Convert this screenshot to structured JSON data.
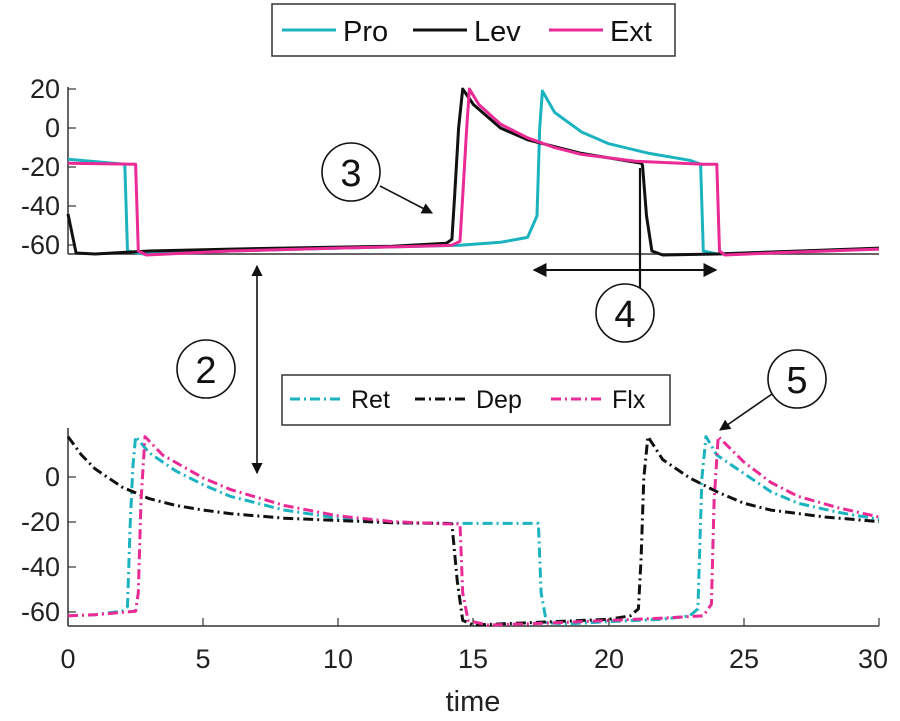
{
  "chart_data": [
    {
      "type": "line",
      "panel": "top",
      "xlim": [
        0,
        30
      ],
      "ylim": [
        -64,
        20
      ],
      "yticks": [
        "20",
        "0",
        "-20",
        "-40",
        "-60"
      ],
      "grid": false,
      "legend_position": "top",
      "series": [
        {
          "name": "Pro",
          "color": "#1bb3c0",
          "dash": "solid",
          "points": [
            [
              0,
              -16
            ],
            [
              2.1,
              -18.5
            ],
            [
              2.2,
              -63
            ],
            [
              2.8,
              -64.5
            ],
            [
              6,
              -63
            ],
            [
              10,
              -61.5
            ],
            [
              13,
              -60.5
            ],
            [
              14.5,
              -60
            ],
            [
              16,
              -58.5
            ],
            [
              17,
              -56
            ],
            [
              17.35,
              -45
            ],
            [
              17.45,
              0
            ],
            [
              17.55,
              19
            ],
            [
              18,
              8
            ],
            [
              19,
              -2
            ],
            [
              20,
              -8
            ],
            [
              21.5,
              -13
            ],
            [
              23,
              -16.5
            ],
            [
              23.4,
              -18.5
            ],
            [
              23.5,
              -63
            ],
            [
              24,
              -64.5
            ],
            [
              26,
              -63.5
            ],
            [
              30,
              -62
            ]
          ]
        },
        {
          "name": "Lev",
          "color": "#111111",
          "dash": "solid",
          "points": [
            [
              0,
              -44
            ],
            [
              0.3,
              -64
            ],
            [
              1,
              -64.5
            ],
            [
              3,
              -63
            ],
            [
              6,
              -62
            ],
            [
              10,
              -61
            ],
            [
              12,
              -60.5
            ],
            [
              14,
              -59
            ],
            [
              14.2,
              -57
            ],
            [
              14.3,
              -35
            ],
            [
              14.45,
              0
            ],
            [
              14.6,
              20
            ],
            [
              15,
              12
            ],
            [
              16,
              0
            ],
            [
              17,
              -6
            ],
            [
              19,
              -13
            ],
            [
              21.2,
              -18
            ],
            [
              21.25,
              -19
            ],
            [
              21.4,
              -45
            ],
            [
              21.6,
              -63
            ],
            [
              22,
              -65
            ],
            [
              24,
              -64.5
            ],
            [
              30,
              -61.5
            ]
          ]
        },
        {
          "name": "Ext",
          "color": "#ea2a95",
          "dash": "solid",
          "points": [
            [
              0,
              -18
            ],
            [
              2.5,
              -18.5
            ],
            [
              2.6,
              -63
            ],
            [
              2.9,
              -65
            ],
            [
              6,
              -63
            ],
            [
              10,
              -61.5
            ],
            [
              13,
              -60.5
            ],
            [
              14.2,
              -60
            ],
            [
              14.5,
              -58
            ],
            [
              14.6,
              -35
            ],
            [
              14.75,
              0
            ],
            [
              14.85,
              20
            ],
            [
              15.2,
              12
            ],
            [
              16,
              2
            ],
            [
              17,
              -5
            ],
            [
              18,
              -10
            ],
            [
              19,
              -13.5
            ],
            [
              21,
              -17
            ],
            [
              23.5,
              -18.5
            ],
            [
              24,
              -18.5
            ],
            [
              24.1,
              -63
            ],
            [
              24.3,
              -65
            ],
            [
              26,
              -64
            ],
            [
              30,
              -62
            ]
          ]
        }
      ]
    },
    {
      "type": "line",
      "panel": "bottom",
      "xlim": [
        0,
        30
      ],
      "ylim": [
        -64,
        20
      ],
      "xticks": [
        "0",
        "5",
        "10",
        "15",
        "20",
        "25",
        "30"
      ],
      "yticks": [
        "0",
        "-20",
        "-40",
        "-60"
      ],
      "xlabel": "time",
      "grid": false,
      "legend_position": "top",
      "series": [
        {
          "name": "Ret",
          "color": "#1bb3c0",
          "dash": "dashdot",
          "points": [
            [
              0,
              -60
            ],
            [
              1,
              -59.5
            ],
            [
              2,
              -58
            ],
            [
              2.2,
              -56
            ],
            [
              2.3,
              -20
            ],
            [
              2.4,
              5
            ],
            [
              2.5,
              18
            ],
            [
              3,
              11
            ],
            [
              4,
              3
            ],
            [
              5,
              -3
            ],
            [
              6,
              -8
            ],
            [
              8,
              -14
            ],
            [
              10,
              -17.5
            ],
            [
              12,
              -19.5
            ],
            [
              14,
              -19.8
            ],
            [
              17.4,
              -19.8
            ],
            [
              17.5,
              -50
            ],
            [
              17.7,
              -63
            ],
            [
              18.5,
              -63.5
            ],
            [
              20,
              -62.5
            ],
            [
              22,
              -61.5
            ],
            [
              23,
              -60
            ],
            [
              23.3,
              -57
            ],
            [
              23.45,
              0
            ],
            [
              23.6,
              18
            ],
            [
              24,
              10
            ],
            [
              25,
              2
            ],
            [
              26,
              -6
            ],
            [
              27,
              -11
            ],
            [
              28.5,
              -15
            ],
            [
              30,
              -18
            ]
          ]
        },
        {
          "name": "Dep",
          "color": "#111111",
          "dash": "dashdot",
          "points": [
            [
              0,
              18
            ],
            [
              0.5,
              10
            ],
            [
              1,
              4
            ],
            [
              1.5,
              0
            ],
            [
              2,
              -4
            ],
            [
              3,
              -9
            ],
            [
              4,
              -12
            ],
            [
              5,
              -14
            ],
            [
              6,
              -15.5
            ],
            [
              8,
              -17.5
            ],
            [
              10,
              -18.5
            ],
            [
              12,
              -19.5
            ],
            [
              14,
              -19.8
            ],
            [
              14.2,
              -20
            ],
            [
              14.4,
              -45
            ],
            [
              14.6,
              -62
            ],
            [
              15,
              -64
            ],
            [
              16,
              -63.5
            ],
            [
              18,
              -62.5
            ],
            [
              20,
              -61.5
            ],
            [
              20.8,
              -60
            ],
            [
              21.1,
              -57
            ],
            [
              21.2,
              -35
            ],
            [
              21.3,
              0
            ],
            [
              21.45,
              18
            ],
            [
              22,
              8
            ],
            [
              23,
              0
            ],
            [
              24,
              -6
            ],
            [
              25,
              -11
            ],
            [
              26,
              -14
            ],
            [
              28,
              -17
            ],
            [
              30,
              -19
            ]
          ]
        },
        {
          "name": "Flx",
          "color": "#ea2a95",
          "dash": "dashdot",
          "points": [
            [
              0,
              -60
            ],
            [
              1,
              -59.5
            ],
            [
              2.5,
              -58
            ],
            [
              2.6,
              -50
            ],
            [
              2.7,
              -10
            ],
            [
              2.85,
              18
            ],
            [
              3.5,
              10
            ],
            [
              5,
              0
            ],
            [
              6,
              -5
            ],
            [
              8,
              -12
            ],
            [
              10,
              -16.5
            ],
            [
              12,
              -19
            ],
            [
              14,
              -20
            ],
            [
              14.5,
              -20
            ],
            [
              14.6,
              -50
            ],
            [
              14.8,
              -62
            ],
            [
              15.5,
              -64
            ],
            [
              17,
              -63.5
            ],
            [
              19,
              -62.5
            ],
            [
              22,
              -61
            ],
            [
              23.5,
              -60
            ],
            [
              23.8,
              -55
            ],
            [
              23.9,
              -10
            ],
            [
              24.05,
              18
            ],
            [
              25,
              7
            ],
            [
              26,
              -2
            ],
            [
              27,
              -8
            ],
            [
              28.5,
              -13
            ],
            [
              30,
              -17
            ]
          ]
        }
      ]
    }
  ],
  "annotations": {
    "label_2": "2",
    "label_3": "3",
    "label_4": "4",
    "label_5": "5"
  }
}
